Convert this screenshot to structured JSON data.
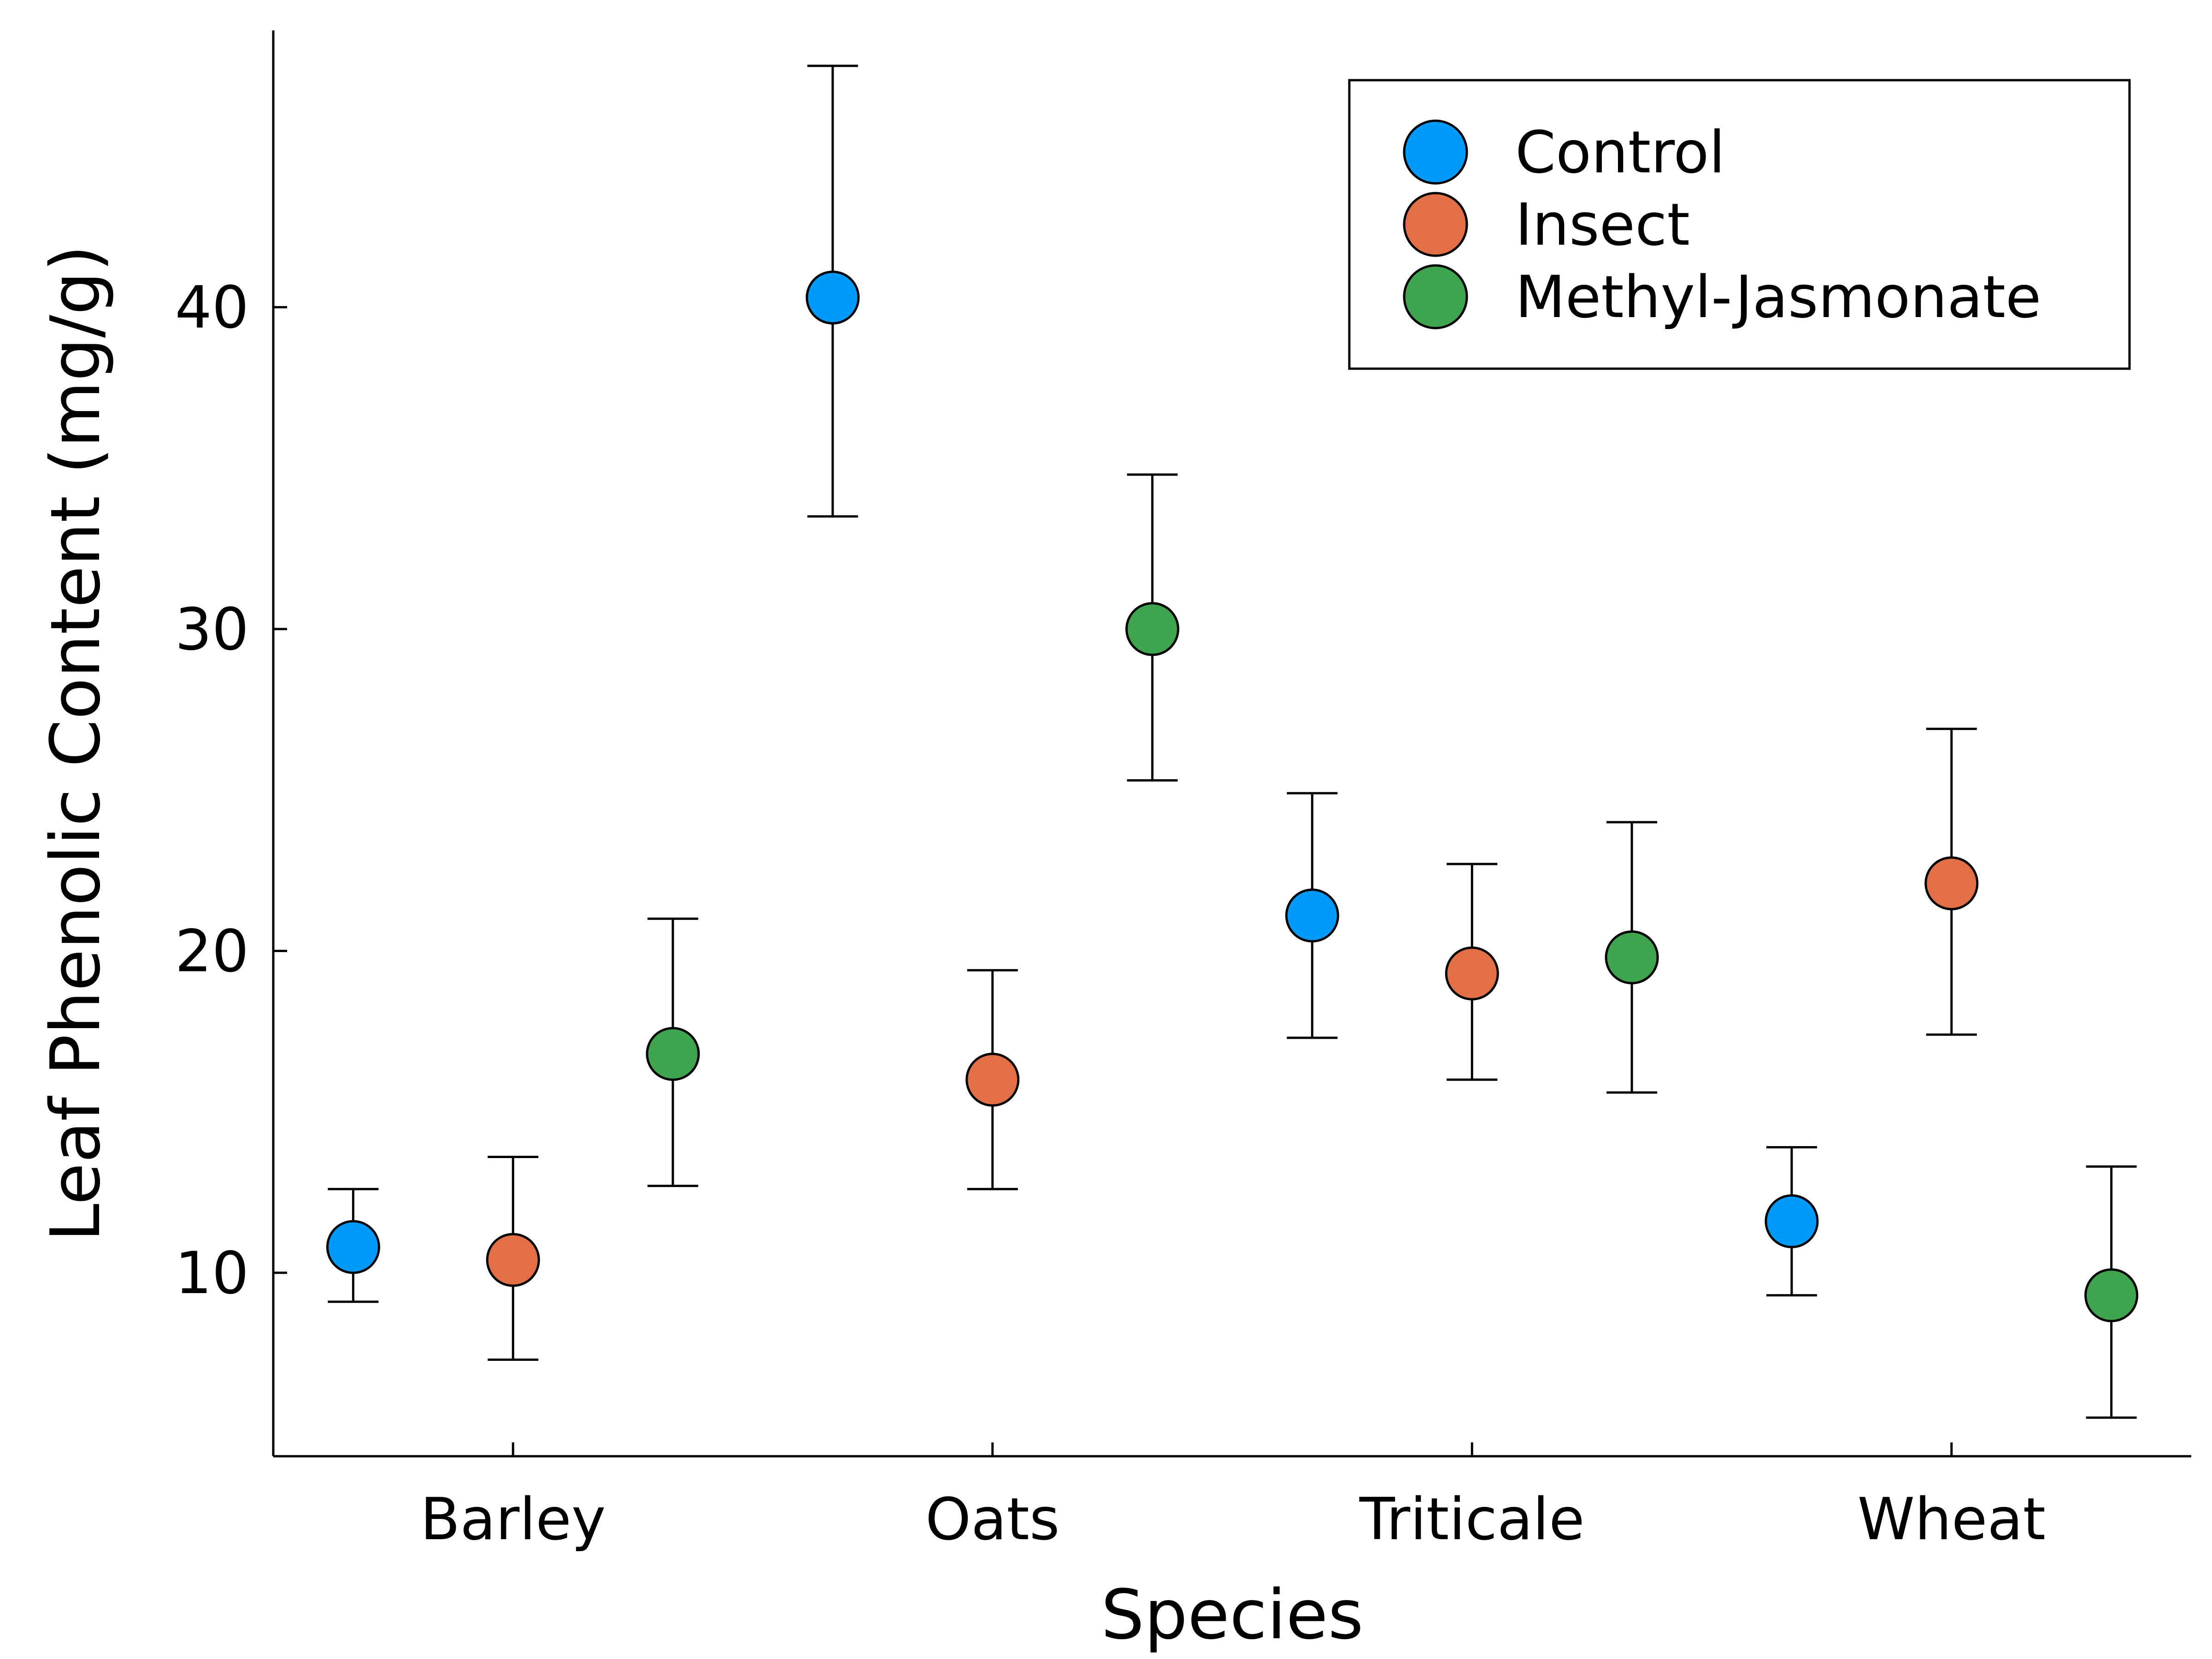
{
  "chart_data": {
    "type": "scatter",
    "xlabel": "Species",
    "ylabel": "Leaf Phenolic Content (mg/g)",
    "categories": [
      "Barley",
      "Oats",
      "Triticale",
      "Wheat"
    ],
    "ylim": [
      4.3,
      48.6
    ],
    "yticks": [
      10,
      20,
      30,
      40
    ],
    "grid": false,
    "legend_position": "top-right",
    "series": [
      {
        "name": "Control",
        "color": "#009AFA",
        "values": [
          10.8,
          40.3,
          21.1,
          11.6
        ],
        "err_lower": [
          9.1,
          33.5,
          17.3,
          9.3
        ],
        "err_upper": [
          12.6,
          47.5,
          24.9,
          13.9
        ]
      },
      {
        "name": "Insect",
        "color": "#E26F46",
        "values": [
          10.4,
          16.0,
          19.3,
          22.1
        ],
        "err_lower": [
          7.3,
          12.6,
          16.0,
          17.4
        ],
        "err_upper": [
          13.6,
          19.4,
          22.7,
          26.9
        ]
      },
      {
        "name": "Methyl-Jasmonate",
        "color": "#3EA44E",
        "values": [
          16.8,
          30.0,
          19.8,
          9.3
        ],
        "err_lower": [
          12.7,
          25.3,
          15.6,
          5.5
        ],
        "err_upper": [
          21.0,
          34.8,
          24.0,
          13.3
        ]
      }
    ]
  }
}
